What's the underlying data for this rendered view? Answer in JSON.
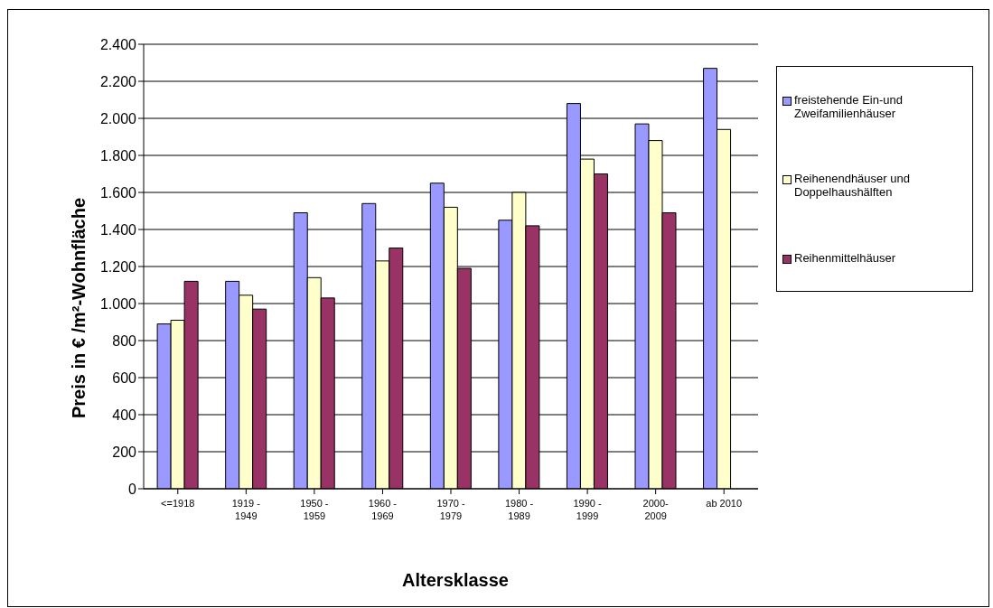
{
  "chart_data": {
    "type": "bar",
    "xlabel": "Altersklasse",
    "ylabel": "Preis in € /m²-Wohnfläche",
    "categories": [
      "<=1918",
      "1919 - 1949",
      "1950 - 1959",
      "1960 - 1969",
      "1970 - 1979",
      "1980 - 1989",
      "1990 - 1999",
      "2000-2009",
      "ab 2010"
    ],
    "series": [
      {
        "name": "freistehende Ein-und Zweifamilienhäuser",
        "color": "#9999ff",
        "values": [
          890,
          1120,
          1490,
          1540,
          1650,
          1450,
          2080,
          1970,
          2270
        ]
      },
      {
        "name": "Reihenendhäuser und Doppelhaushälften",
        "color": "#ffffcc",
        "values": [
          910,
          1045,
          1140,
          1230,
          1520,
          1600,
          1780,
          1880,
          1940
        ]
      },
      {
        "name": "Reihenmittelhäuser",
        "color": "#993366",
        "values": [
          1120,
          970,
          1030,
          1300,
          1190,
          1420,
          1700,
          1490,
          null
        ]
      }
    ],
    "ylim": [
      0,
      2400
    ],
    "yticks": [
      0,
      200,
      400,
      600,
      800,
      {
        "value": 1000,
        "label": "1.000"
      },
      {
        "value": 1200,
        "label": "1.200"
      },
      {
        "value": 1400,
        "label": "1.400"
      },
      {
        "value": 1600,
        "label": "1.600"
      },
      {
        "value": 1800,
        "label": "1.800"
      },
      {
        "value": 2000,
        "label": "2.000"
      },
      {
        "value": 2200,
        "label": "2.200"
      },
      {
        "value": 2400,
        "label": "2.400"
      }
    ],
    "grid": "y",
    "legend": "right"
  }
}
